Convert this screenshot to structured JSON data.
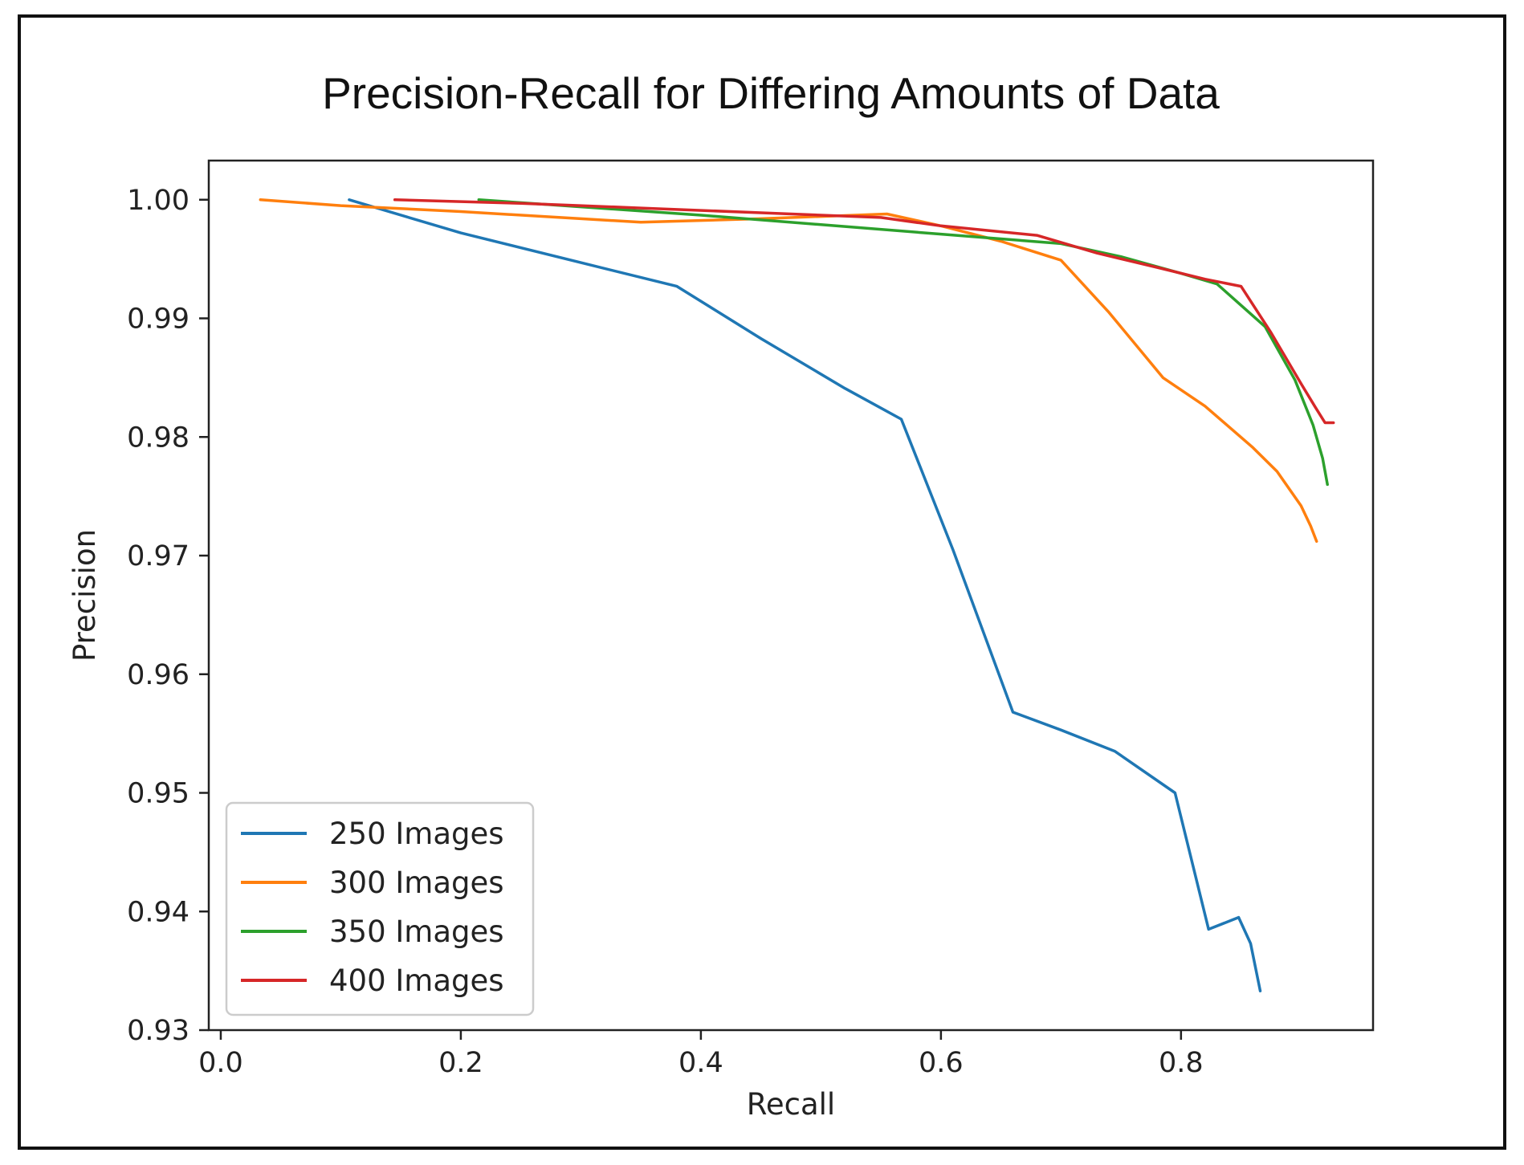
{
  "chart_data": {
    "type": "line",
    "title": "Precision-Recall for Differing Amounts of Data",
    "xlabel": "Recall",
    "ylabel": "Precision",
    "xlim": [
      -0.01,
      0.96
    ],
    "ylim": [
      0.93,
      1.0033
    ],
    "xticks": [
      {
        "value": 0.0,
        "label": "0.0"
      },
      {
        "value": 0.2,
        "label": "0.2"
      },
      {
        "value": 0.4,
        "label": "0.4"
      },
      {
        "value": 0.6,
        "label": "0.6"
      },
      {
        "value": 0.8,
        "label": "0.8"
      }
    ],
    "yticks": [
      {
        "value": 0.93,
        "label": "0.93"
      },
      {
        "value": 0.94,
        "label": "0.94"
      },
      {
        "value": 0.95,
        "label": "0.95"
      },
      {
        "value": 0.96,
        "label": "0.96"
      },
      {
        "value": 0.97,
        "label": "0.97"
      },
      {
        "value": 0.98,
        "label": "0.98"
      },
      {
        "value": 0.99,
        "label": "0.99"
      },
      {
        "value": 1.0,
        "label": "1.00"
      }
    ],
    "grid": false,
    "legend_position": "lower-left",
    "series": [
      {
        "name": "250 Images",
        "color": "#1f77b4",
        "x": [
          0.107,
          0.2,
          0.3,
          0.38,
          0.45,
          0.52,
          0.567,
          0.61,
          0.66,
          0.7,
          0.745,
          0.795,
          0.823,
          0.848,
          0.858,
          0.866
        ],
        "y": [
          1.0,
          0.9972,
          0.9947,
          0.9927,
          0.9883,
          0.9841,
          0.9815,
          0.9705,
          0.9568,
          0.9553,
          0.9535,
          0.95,
          0.9385,
          0.9395,
          0.9373,
          0.9333
        ]
      },
      {
        "name": "300 Images",
        "color": "#ff7f0e",
        "x": [
          0.033,
          0.1,
          0.2,
          0.3,
          0.35,
          0.45,
          0.555,
          0.6,
          0.65,
          0.7,
          0.74,
          0.785,
          0.82,
          0.86,
          0.88,
          0.9,
          0.908,
          0.913
        ],
        "y": [
          1.0,
          0.9995,
          0.999,
          0.9984,
          0.9981,
          0.9984,
          0.9988,
          0.9978,
          0.9965,
          0.9949,
          0.9905,
          0.985,
          0.9826,
          0.9791,
          0.9771,
          0.9742,
          0.9725,
          0.9712
        ]
      },
      {
        "name": "350 Images",
        "color": "#2ca02c",
        "x": [
          0.215,
          0.3,
          0.4,
          0.5,
          0.6,
          0.65,
          0.7,
          0.75,
          0.8,
          0.83,
          0.87,
          0.895,
          0.91,
          0.918,
          0.922
        ],
        "y": [
          1.0,
          0.9994,
          0.9987,
          0.9979,
          0.9971,
          0.9967,
          0.9963,
          0.9952,
          0.9938,
          0.9929,
          0.9893,
          0.9848,
          0.981,
          0.9782,
          0.976
        ]
      },
      {
        "name": "400 Images",
        "color": "#d62728",
        "x": [
          0.145,
          0.25,
          0.35,
          0.45,
          0.55,
          0.6,
          0.68,
          0.73,
          0.78,
          0.82,
          0.85,
          0.875,
          0.9,
          0.912,
          0.92,
          0.927
        ],
        "y": [
          1.0,
          0.9997,
          0.9993,
          0.9989,
          0.9985,
          0.9978,
          0.997,
          0.9955,
          0.9943,
          0.9933,
          0.9927,
          0.9888,
          0.9845,
          0.9825,
          0.9812,
          0.9812
        ]
      }
    ]
  }
}
